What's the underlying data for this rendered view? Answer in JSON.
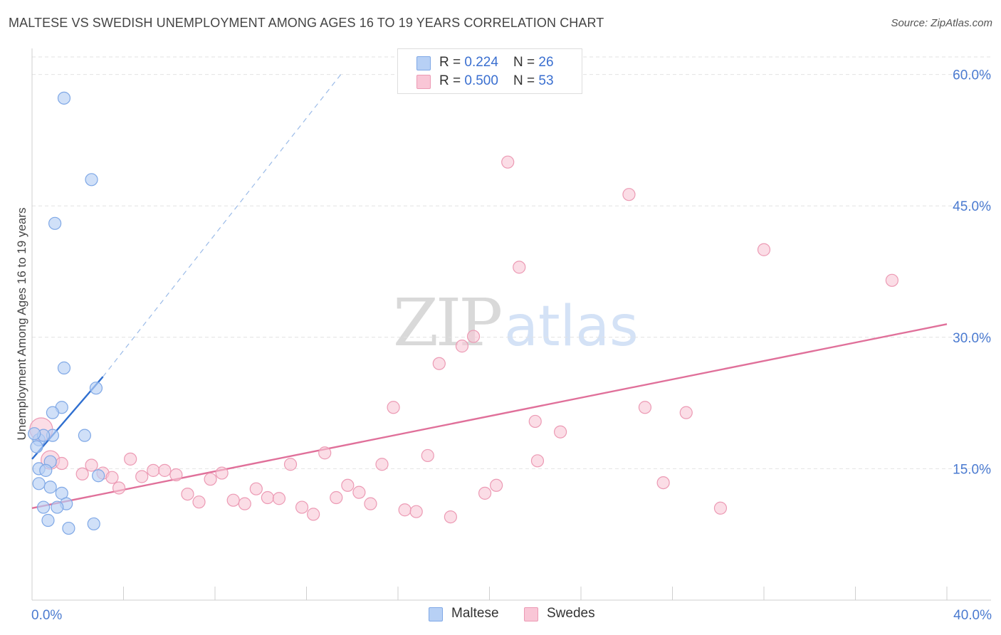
{
  "title": "MALTESE VS SWEDISH UNEMPLOYMENT AMONG AGES 16 TO 19 YEARS CORRELATION CHART",
  "source": "Source: ZipAtlas.com",
  "watermark": {
    "zip": "ZIP",
    "atlas": "atlas"
  },
  "legend": {
    "rows": [
      {
        "r_label": "R = ",
        "r_value": "0.224",
        "n_label": "N = ",
        "n_value": "26"
      },
      {
        "r_label": "R = ",
        "r_value": "0.500",
        "n_label": "N = ",
        "n_value": "53"
      }
    ]
  },
  "bottom_legend": {
    "maltese": "Maltese",
    "swedes": "Swedes"
  },
  "chart_data": {
    "type": "scatter",
    "title": "MALTESE VS SWEDISH UNEMPLOYMENT AMONG AGES 16 TO 19 YEARS CORRELATION CHART",
    "xlabel": "",
    "ylabel": "Unemployment Among Ages 16 to 19 years",
    "xlim": [
      0,
      40
    ],
    "ylim": [
      0,
      62
    ],
    "x_tick_labels": [
      "0.0%",
      "40.0%"
    ],
    "y_ticks": [
      15,
      30,
      45,
      60
    ],
    "y_tick_labels": [
      "15.0%",
      "30.0%",
      "45.0%",
      "60.0%"
    ],
    "colors": {
      "maltese_fill": "#b7d0f5",
      "maltese_stroke": "#7fa8e6",
      "maltese_line": "#2f6fd0",
      "swedes_fill": "#f9c6d6",
      "swedes_stroke": "#ec9ab4",
      "swedes_line": "#e0709a"
    },
    "series": [
      {
        "name": "Maltese",
        "points": [
          [
            1.4,
            57.3
          ],
          [
            2.6,
            48.0
          ],
          [
            1.0,
            43.0
          ],
          [
            1.4,
            26.5
          ],
          [
            2.8,
            24.2
          ],
          [
            1.3,
            22.0
          ],
          [
            0.9,
            21.4
          ],
          [
            0.3,
            18.3
          ],
          [
            0.9,
            18.8
          ],
          [
            2.3,
            18.8
          ],
          [
            0.5,
            18.8
          ],
          [
            0.8,
            15.8
          ],
          [
            0.3,
            15.0
          ],
          [
            0.6,
            14.8
          ],
          [
            2.9,
            14.2
          ],
          [
            0.3,
            13.3
          ],
          [
            0.8,
            12.9
          ],
          [
            1.3,
            12.2
          ],
          [
            1.5,
            11.0
          ],
          [
            0.5,
            10.6
          ],
          [
            1.1,
            10.6
          ],
          [
            0.7,
            9.1
          ],
          [
            1.6,
            8.2
          ],
          [
            2.7,
            8.7
          ],
          [
            0.1,
            19.0
          ],
          [
            0.2,
            17.5
          ]
        ],
        "trend": {
          "x": [
            0.0,
            3.1
          ],
          "y": [
            16.1,
            25.5
          ],
          "dashed_to": [
            13.5,
            60.0
          ]
        }
      },
      {
        "name": "Swedes",
        "points": [
          [
            0.4,
            19.5
          ],
          [
            0.8,
            16.0
          ],
          [
            1.3,
            15.6
          ],
          [
            2.6,
            15.4
          ],
          [
            3.1,
            14.5
          ],
          [
            2.2,
            14.4
          ],
          [
            3.5,
            14.0
          ],
          [
            3.8,
            12.8
          ],
          [
            4.3,
            16.1
          ],
          [
            4.8,
            14.1
          ],
          [
            5.3,
            14.8
          ],
          [
            5.8,
            14.8
          ],
          [
            6.3,
            14.3
          ],
          [
            6.8,
            12.1
          ],
          [
            7.3,
            11.2
          ],
          [
            7.8,
            13.8
          ],
          [
            8.3,
            14.5
          ],
          [
            8.8,
            11.4
          ],
          [
            9.3,
            11.0
          ],
          [
            9.8,
            12.7
          ],
          [
            10.3,
            11.7
          ],
          [
            10.8,
            11.6
          ],
          [
            11.3,
            15.5
          ],
          [
            11.8,
            10.6
          ],
          [
            12.3,
            9.8
          ],
          [
            12.8,
            16.8
          ],
          [
            13.3,
            11.7
          ],
          [
            13.8,
            13.1
          ],
          [
            14.3,
            12.3
          ],
          [
            14.8,
            11.0
          ],
          [
            15.3,
            15.5
          ],
          [
            15.8,
            22.0
          ],
          [
            16.3,
            10.3
          ],
          [
            16.8,
            10.1
          ],
          [
            17.3,
            16.5
          ],
          [
            17.8,
            27.0
          ],
          [
            18.3,
            9.5
          ],
          [
            18.8,
            29.0
          ],
          [
            19.3,
            30.1
          ],
          [
            19.8,
            12.2
          ],
          [
            20.3,
            13.1
          ],
          [
            20.8,
            50.0
          ],
          [
            21.3,
            38.0
          ],
          [
            22.0,
            20.4
          ],
          [
            22.1,
            15.9
          ],
          [
            23.1,
            19.2
          ],
          [
            26.1,
            46.3
          ],
          [
            26.8,
            22.0
          ],
          [
            27.6,
            13.4
          ],
          [
            28.6,
            21.4
          ],
          [
            30.1,
            10.5
          ],
          [
            32.0,
            40.0
          ],
          [
            37.6,
            36.5
          ]
        ],
        "trend": {
          "x": [
            0.0,
            40.0
          ],
          "y": [
            10.5,
            31.5
          ]
        }
      }
    ]
  }
}
